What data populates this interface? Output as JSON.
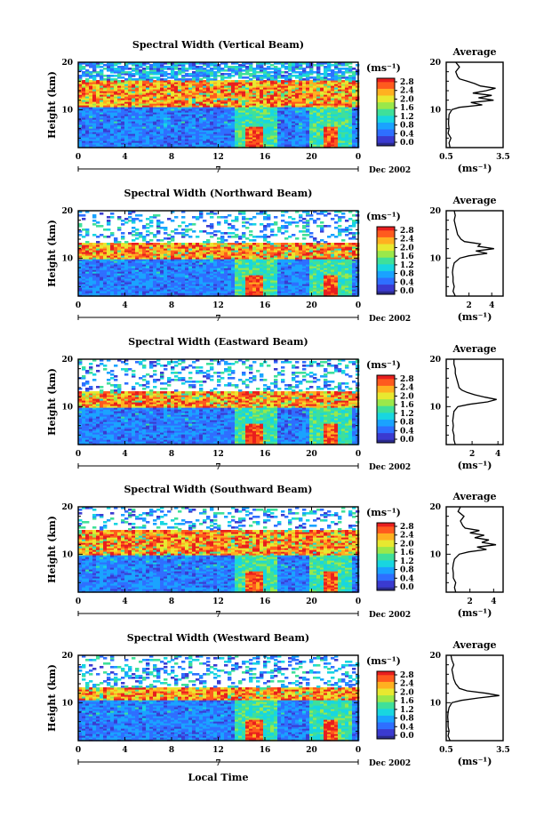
{
  "figure": {
    "xlabel": "Local Time",
    "date_label": "Dec 2002",
    "day_marker": "7",
    "ylabel": "Height (km)",
    "colorbar_unit": "(ms⁻¹)",
    "colorbar_ticks": [
      "0.0",
      "0.4",
      "0.8",
      "1.2",
      "1.6",
      "2.0",
      "2.4",
      "2.8"
    ],
    "avg_title": "Average",
    "avg_xlabel": "(ms⁻¹)",
    "x_ticks": [
      "0",
      "4",
      "8",
      "12",
      "16",
      "20",
      "0"
    ],
    "y_ticks": [
      "10",
      "20"
    ],
    "colormap": [
      "#2a2a8c",
      "#3b3bd0",
      "#2f6fff",
      "#1aa3ff",
      "#18d6e0",
      "#3fe09a",
      "#9be84a",
      "#e8e830",
      "#ffb020",
      "#ff5a1e",
      "#e81e1e"
    ]
  },
  "chart_data": [
    {
      "type": "heatmap",
      "title": "Spectral Width (Vertical Beam)",
      "xlabel": "Local Time",
      "ylabel": "Height (km)",
      "xlim": [
        0,
        24
      ],
      "ylim": [
        2,
        20
      ],
      "colorbar_range": [
        0.0,
        2.8
      ],
      "tropopause_band_km": [
        11,
        16
      ],
      "rain_events_hours": [
        15,
        21.5
      ],
      "average_profile": {
        "xlim": [
          0.5,
          3.5
        ],
        "x_ticks": [
          "0.5",
          "3.5"
        ],
        "height_km": [
          2,
          3,
          4,
          5,
          6,
          7,
          8,
          9,
          10,
          10.5,
          11,
          11.5,
          12,
          12.5,
          13,
          13.5,
          14,
          14.5,
          15,
          15.5,
          16,
          16.5,
          17,
          18,
          19,
          20
        ],
        "values": [
          0.7,
          0.65,
          0.75,
          0.6,
          0.65,
          0.62,
          0.63,
          0.65,
          0.8,
          1.2,
          2.4,
          1.8,
          3.0,
          2.2,
          2.9,
          1.9,
          2.6,
          3.1,
          2.3,
          2.0,
          1.6,
          1.2,
          1.1,
          1.0,
          1.2,
          1.0
        ]
      }
    },
    {
      "type": "heatmap",
      "title": "Spectral Width (Northward Beam)",
      "xlabel": "Local Time",
      "ylabel": "Height (km)",
      "xlim": [
        0,
        24
      ],
      "ylim": [
        2,
        20
      ],
      "colorbar_range": [
        0.0,
        2.8
      ],
      "tropopause_band_km": [
        10.5,
        13
      ],
      "rain_events_hours": [
        15,
        21.5
      ],
      "average_profile": {
        "xlim": [
          0,
          5
        ],
        "x_ticks": [
          "2",
          "4"
        ],
        "height_km": [
          2,
          3,
          4,
          5,
          6,
          7,
          8,
          9,
          10,
          10.5,
          11,
          11.5,
          12,
          12.5,
          13,
          13.5,
          14,
          15,
          16,
          17,
          18,
          19,
          20
        ],
        "values": [
          0.8,
          0.6,
          0.7,
          0.6,
          0.6,
          0.55,
          0.6,
          0.7,
          1.2,
          2.0,
          3.6,
          2.6,
          4.2,
          2.8,
          3.0,
          1.6,
          1.3,
          1.0,
          0.9,
          0.8,
          0.7,
          0.8,
          0.7
        ]
      }
    },
    {
      "type": "heatmap",
      "title": "Spectral Width (Eastward Beam)",
      "xlabel": "Local Time",
      "ylabel": "Height (km)",
      "xlim": [
        0,
        24
      ],
      "ylim": [
        2,
        20
      ],
      "colorbar_range": [
        0.0,
        2.8
      ],
      "tropopause_band_km": [
        10.5,
        13
      ],
      "rain_events_hours": [
        15,
        21.5
      ],
      "average_profile": {
        "xlim": [
          0,
          4.4
        ],
        "x_ticks": [
          "2",
          "4"
        ],
        "height_km": [
          2,
          3,
          4,
          5,
          6,
          7,
          8,
          9,
          10,
          10.5,
          11,
          11.5,
          12,
          12.5,
          13,
          13.5,
          14,
          15,
          16,
          17,
          18,
          19,
          20
        ],
        "values": [
          0.7,
          0.6,
          0.6,
          0.5,
          0.55,
          0.5,
          0.55,
          0.6,
          0.9,
          1.8,
          3.2,
          3.9,
          3.0,
          2.2,
          1.6,
          1.2,
          1.0,
          0.9,
          0.8,
          0.7,
          0.7,
          0.6,
          0.6
        ]
      }
    },
    {
      "type": "heatmap",
      "title": "Spectral Width (Southward Beam)",
      "xlabel": "Local Time",
      "ylabel": "Height (km)",
      "xlim": [
        0,
        24
      ],
      "ylim": [
        2,
        20
      ],
      "colorbar_range": [
        0.0,
        2.8
      ],
      "tropopause_band_km": [
        10.5,
        15
      ],
      "rain_events_hours": [
        15,
        21.5
      ],
      "average_profile": {
        "xlim": [
          0,
          4.8
        ],
        "x_ticks": [
          "2",
          "4"
        ],
        "height_km": [
          2,
          3,
          4,
          5,
          6,
          7,
          8,
          9,
          10,
          10.5,
          11,
          11.5,
          12,
          12.5,
          13,
          13.5,
          14,
          14.5,
          15,
          15.5,
          16,
          17,
          18,
          19,
          20
        ],
        "values": [
          0.8,
          0.7,
          0.8,
          0.6,
          0.6,
          0.55,
          0.6,
          0.7,
          1.1,
          1.9,
          3.4,
          2.6,
          4.2,
          3.0,
          3.6,
          2.4,
          3.2,
          2.0,
          2.8,
          1.6,
          1.4,
          1.2,
          1.5,
          1.0,
          1.2
        ]
      }
    },
    {
      "type": "heatmap",
      "title": "Spectral Width (Westward Beam)",
      "xlabel": "Local Time",
      "ylabel": "Height (km)",
      "xlim": [
        0,
        24
      ],
      "ylim": [
        2,
        20
      ],
      "colorbar_range": [
        0.0,
        2.8
      ],
      "tropopause_band_km": [
        11,
        13
      ],
      "rain_events_hours": [
        15,
        21.5
      ],
      "average_profile": {
        "xlim": [
          0.5,
          3.5
        ],
        "x_ticks": [
          "0.5",
          "3.5"
        ],
        "height_km": [
          2,
          3,
          4,
          5,
          6,
          7,
          8,
          9,
          10,
          10.5,
          11,
          11.5,
          12,
          12.5,
          13,
          14,
          15,
          16,
          17,
          18,
          19,
          20
        ],
        "values": [
          0.7,
          0.6,
          0.65,
          0.6,
          0.6,
          0.58,
          0.6,
          0.65,
          0.8,
          1.3,
          2.2,
          3.3,
          2.6,
          1.6,
          1.2,
          1.0,
          0.9,
          0.85,
          0.8,
          0.9,
          0.8,
          0.75
        ]
      }
    }
  ]
}
